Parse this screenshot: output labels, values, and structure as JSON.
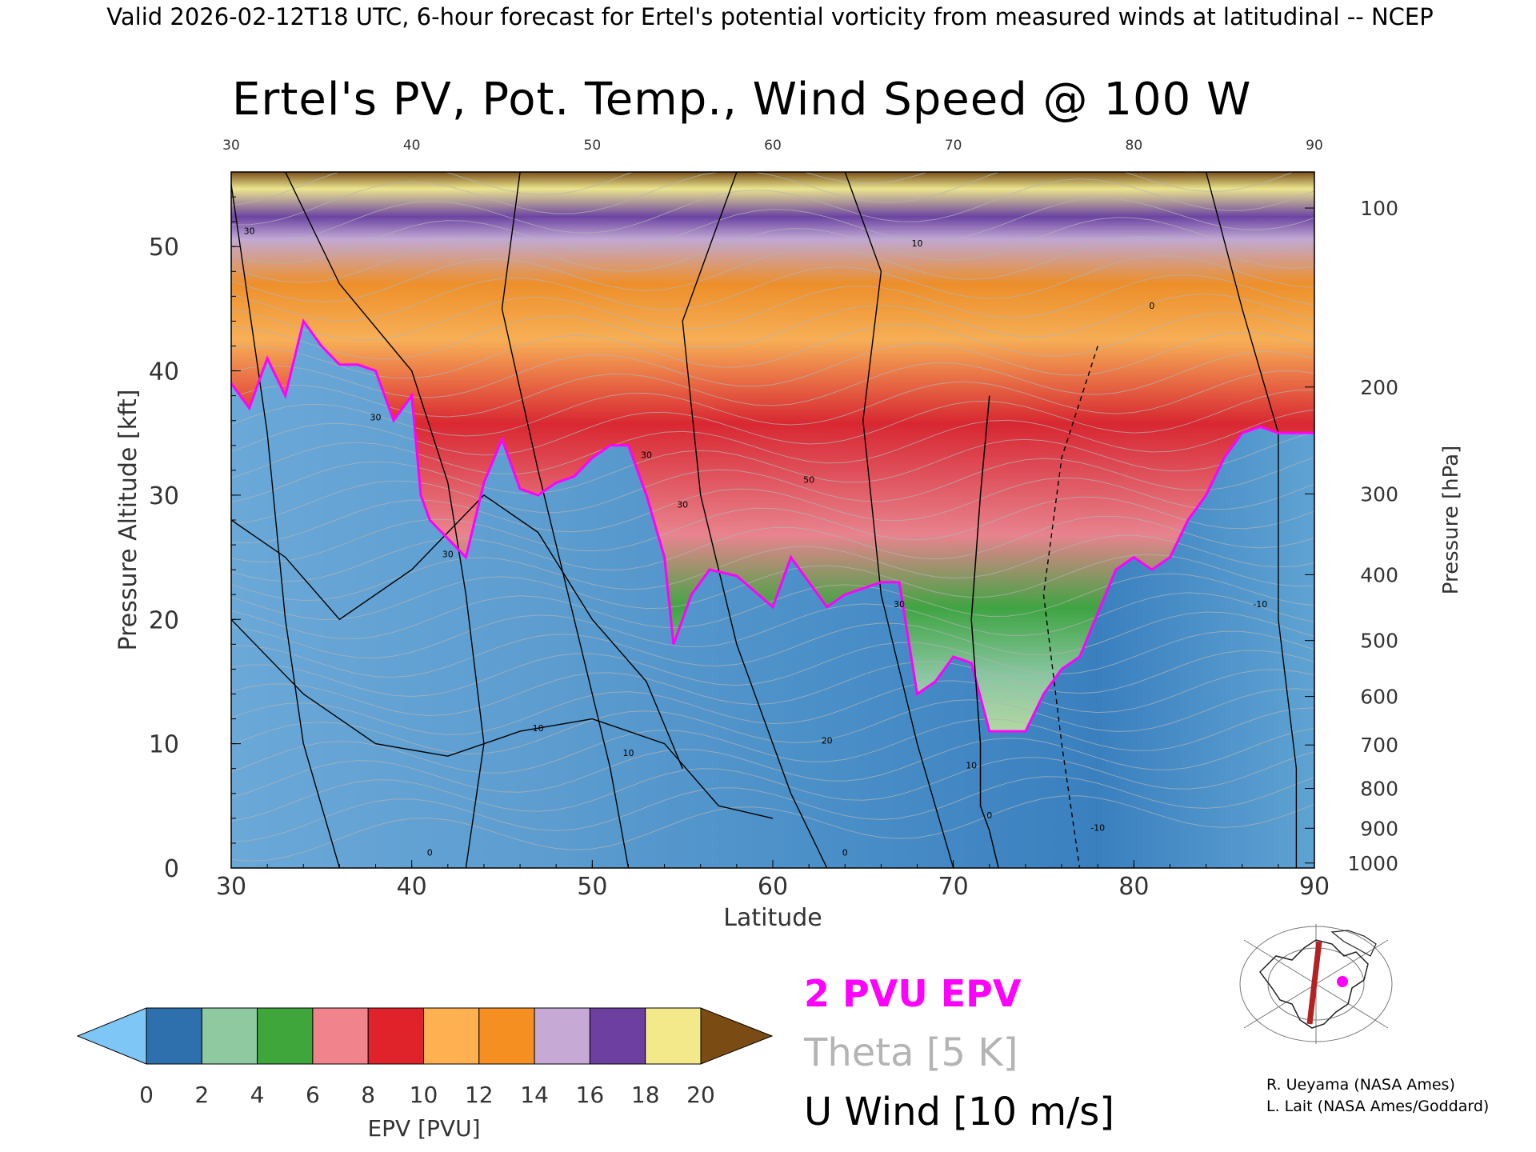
{
  "header": {
    "banner": "Valid 2026-02-12T18 UTC, 6-hour forecast for Ertel's potential vorticity from measured winds at latitudinal -- NCEP",
    "title": "Ertel's PV, Pot. Temp., Wind Speed @ 100 W"
  },
  "chart_data": {
    "type": "heatmap",
    "title": "Ertel's PV, Pot. Temp., Wind Speed @ 100 W",
    "xlabel": "Latitude",
    "ylabel": "Pressure Altitude [kft]",
    "y2label": "Pressure [hPa]",
    "xlim": [
      30,
      90
    ],
    "ylim": [
      0,
      56
    ],
    "x_ticks": [
      "30",
      "40",
      "50",
      "60",
      "70",
      "80",
      "90"
    ],
    "y_ticks": [
      "0",
      "10",
      "20",
      "30",
      "40",
      "50"
    ],
    "pressure_ticks": [
      {
        "label": "100",
        "kft": 53.1
      },
      {
        "label": "200",
        "kft": 38.7
      },
      {
        "label": "300",
        "kft": 30.1
      },
      {
        "label": "400",
        "kft": 23.6
      },
      {
        "label": "500",
        "kft": 18.3
      },
      {
        "label": "600",
        "kft": 13.8
      },
      {
        "label": "700",
        "kft": 9.9
      },
      {
        "label": "800",
        "kft": 6.4
      },
      {
        "label": "900",
        "kft": 3.2
      },
      {
        "label": "1000",
        "kft": 0.4
      }
    ],
    "two_pvu_boundary": [
      [
        30,
        39
      ],
      [
        31,
        37
      ],
      [
        32,
        41
      ],
      [
        33,
        38
      ],
      [
        34,
        44
      ],
      [
        35,
        42
      ],
      [
        36,
        40.5
      ],
      [
        37,
        40.5
      ],
      [
        38,
        40
      ],
      [
        39,
        36
      ],
      [
        40,
        38
      ],
      [
        40.5,
        30
      ],
      [
        41,
        28
      ],
      [
        42,
        26.5
      ],
      [
        43,
        25
      ],
      [
        44,
        31
      ],
      [
        45,
        34.5
      ],
      [
        46,
        30.5
      ],
      [
        47,
        30
      ],
      [
        48,
        31
      ],
      [
        49,
        31.5
      ],
      [
        50,
        33
      ],
      [
        51,
        34
      ],
      [
        52,
        34
      ],
      [
        53,
        30
      ],
      [
        54,
        25
      ],
      [
        54.5,
        18
      ],
      [
        55.5,
        22
      ],
      [
        56.5,
        24
      ],
      [
        58,
        23.5
      ],
      [
        60,
        21
      ],
      [
        61,
        25
      ],
      [
        62,
        23
      ],
      [
        63,
        21
      ],
      [
        64,
        22
      ],
      [
        66,
        23
      ],
      [
        67,
        23
      ],
      [
        68,
        14
      ],
      [
        69,
        15
      ],
      [
        70,
        17
      ],
      [
        71,
        16.5
      ],
      [
        72,
        11
      ],
      [
        74,
        11
      ],
      [
        75,
        14
      ],
      [
        76,
        16
      ],
      [
        77,
        17
      ],
      [
        79,
        24
      ],
      [
        80,
        25
      ],
      [
        81,
        24
      ],
      [
        82,
        25
      ],
      [
        83,
        28
      ],
      [
        84,
        30
      ],
      [
        85,
        33
      ],
      [
        86,
        35
      ],
      [
        87,
        35.5
      ],
      [
        88,
        35
      ],
      [
        89,
        35
      ],
      [
        90,
        35
      ]
    ],
    "zero_wind_contour": [
      [
        72,
        38
      ],
      [
        71.5,
        30
      ],
      [
        71,
        20
      ],
      [
        71.5,
        10
      ],
      [
        71.5,
        5
      ],
      [
        72,
        3
      ],
      [
        72.5,
        0
      ]
    ],
    "wind_contour_labels": [
      {
        "lat": 31,
        "kft": 51,
        "text": "30"
      },
      {
        "lat": 38,
        "kft": 36,
        "text": "30"
      },
      {
        "lat": 42,
        "kft": 25,
        "text": "30"
      },
      {
        "lat": 47,
        "kft": 11,
        "text": "10"
      },
      {
        "lat": 53,
        "kft": 33,
        "text": "30"
      },
      {
        "lat": 55,
        "kft": 29,
        "text": "30"
      },
      {
        "lat": 62,
        "kft": 31,
        "text": "50"
      },
      {
        "lat": 67,
        "kft": 21,
        "text": "30"
      },
      {
        "lat": 68,
        "kft": 50,
        "text": "10"
      },
      {
        "lat": 71,
        "kft": 8,
        "text": "10"
      },
      {
        "lat": 72,
        "kft": 4,
        "text": "0"
      },
      {
        "lat": 81,
        "kft": 45,
        "text": "0"
      },
      {
        "lat": 78,
        "kft": 3,
        "text": "-10"
      },
      {
        "lat": 87,
        "kft": 21,
        "text": "-10"
      },
      {
        "lat": 41,
        "kft": 1,
        "text": "0"
      },
      {
        "lat": 64,
        "kft": 1,
        "text": "0"
      },
      {
        "lat": 52,
        "kft": 9,
        "text": "10"
      },
      {
        "lat": 63,
        "kft": 10,
        "text": "20"
      }
    ],
    "colorbar": {
      "label": "EPV [PVU]",
      "ticks": [
        "0",
        "2",
        "4",
        "6",
        "8",
        "10",
        "12",
        "14",
        "16",
        "18",
        "20"
      ],
      "colors": [
        "#2e6fad",
        "#8ec9a0",
        "#3fa63c",
        "#f0838b",
        "#e0222a",
        "#ffb050",
        "#f58f22",
        "#c6a9d4",
        "#6d3fa0",
        "#f3e98a"
      ],
      "under_color": "#7ec6f5",
      "over_color": "#7a4b12"
    }
  },
  "legend": {
    "pv": "2 PVU EPV",
    "pv_color": "#ff00ff",
    "theta": "Theta [5 K]",
    "theta_color": "#b4b4b4",
    "wind": "U Wind [10 m/s]"
  },
  "credits": {
    "line1": "R. Ueyama (NASA Ames)",
    "line2": "L. Lait (NASA Ames/Goddard)"
  },
  "inset_map": {
    "line_color": "#b22222",
    "dot_color": "#ff00ff"
  }
}
